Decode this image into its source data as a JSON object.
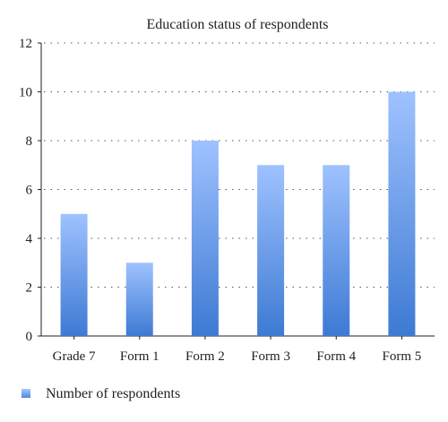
{
  "chart_data": {
    "type": "bar",
    "title": "Education status of respondents",
    "categories": [
      "Grade 7",
      "Form 1",
      "Form 2",
      "Form 3",
      "Form 4",
      "Form 5"
    ],
    "series": [
      {
        "name": "Number of respondents",
        "values": [
          5,
          3,
          8,
          7,
          7,
          10
        ]
      }
    ],
    "y_ticks": [
      "0",
      "2",
      "4",
      "6",
      "8",
      "10",
      "12"
    ],
    "ylim": [
      0,
      12
    ],
    "grid": true,
    "legend_position": "bottom-left",
    "colors": {
      "bar_top": "#9fc2ff",
      "bar_bottom": "#3d7ad3",
      "legend_swatch_top": "#a8c8ff",
      "legend_swatch_bottom": "#4f86db"
    }
  }
}
